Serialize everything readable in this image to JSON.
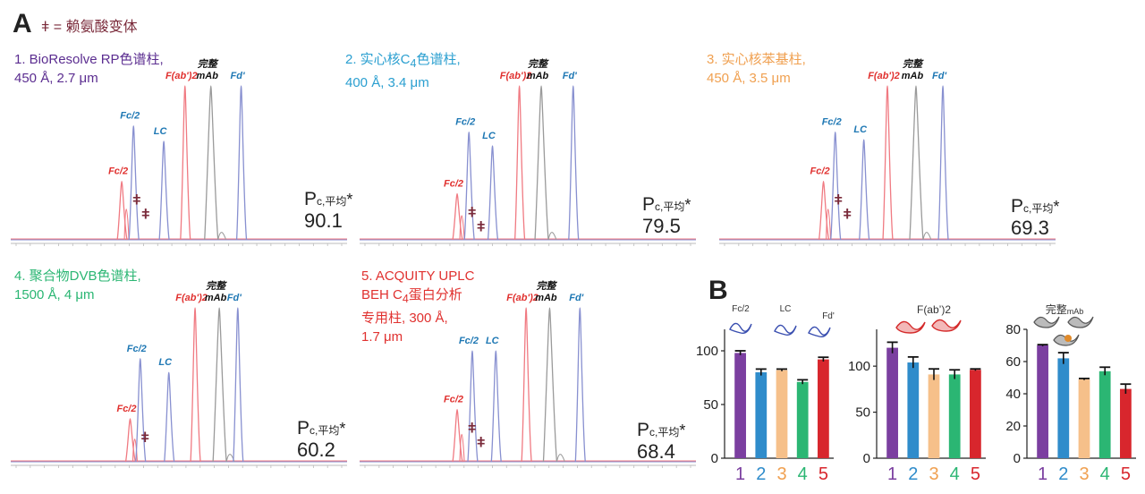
{
  "figure": {
    "panel_a_letter": "A",
    "panel_b_letter": "B",
    "legend_symbol": "ǂ",
    "legend_note": "ǂ = 赖氨酸变体"
  },
  "colors": {
    "blue_trace": "#8890d0",
    "red_trace": "#f07a82",
    "gray_trace": "#9a9a9a",
    "blue_label": "#1f78b4",
    "red_label": "#e0312f",
    "bar1": "#7b3fa0",
    "bar2": "#2f8ccb",
    "bar3": "#f6c08a",
    "bar4": "#2bb673",
    "bar5": "#d8262d"
  },
  "chart_data": [
    {
      "type": "line",
      "id": "chromatogram-1",
      "column_name": "1.  BioResolve RP色谱柱,",
      "column_spec": "450 Å, 2.7 μm",
      "peaks": [
        {
          "label": "Fc/2",
          "color": "red",
          "x": 0.33,
          "height": 0.38
        },
        {
          "label": "Fc/2",
          "color": "blue",
          "x": 0.365,
          "height": 0.74
        },
        {
          "label": "LC",
          "color": "blue",
          "x": 0.455,
          "height": 0.64
        },
        {
          "label": "F(ab')2",
          "color": "red",
          "x": 0.518,
          "height": 1.0
        },
        {
          "label": "完整\nmAb",
          "color": "gray",
          "x": 0.595,
          "height": 1.0
        },
        {
          "label": "Fd'",
          "color": "blue",
          "x": 0.685,
          "height": 1.0
        }
      ],
      "variant_marks": 2,
      "pc_label": "P",
      "pc_sub": "c,平均",
      "pc_star": "*",
      "pc_value": "90.1"
    },
    {
      "type": "line",
      "id": "chromatogram-2",
      "column_name": "2.  实心核C",
      "column_name_sub": "4",
      "column_name_tail": "色谱柱,",
      "column_spec": "400 Å, 3.4 μm",
      "peaks": [
        {
          "label": "Fc/2",
          "color": "red",
          "x": 0.29,
          "height": 0.3
        },
        {
          "label": "Fc/2",
          "color": "blue",
          "x": 0.325,
          "height": 0.7
        },
        {
          "label": "LC",
          "color": "blue",
          "x": 0.395,
          "height": 0.61
        },
        {
          "label": "F(ab')2",
          "color": "red",
          "x": 0.475,
          "height": 1.0
        },
        {
          "label": "完整\nmAb",
          "color": "gray",
          "x": 0.54,
          "height": 1.0
        },
        {
          "label": "Fd'",
          "color": "blue",
          "x": 0.635,
          "height": 1.0
        }
      ],
      "variant_marks": 2,
      "pc_label": "P",
      "pc_sub": "c,平均",
      "pc_star": "*",
      "pc_value": "79.5"
    },
    {
      "type": "line",
      "id": "chromatogram-3",
      "column_name": "3.  实心核苯基柱,",
      "column_spec": "450 Å, 3.5 μm",
      "peaks": [
        {
          "label": "Fc/2",
          "color": "red",
          "x": 0.31,
          "height": 0.38
        },
        {
          "label": "Fc/2",
          "color": "blue",
          "x": 0.345,
          "height": 0.7
        },
        {
          "label": "LC",
          "color": "blue",
          "x": 0.43,
          "height": 0.65
        },
        {
          "label": "F(ab')2",
          "color": "red",
          "x": 0.5,
          "height": 1.0
        },
        {
          "label": "完整\nmAb",
          "color": "gray",
          "x": 0.585,
          "height": 1.0
        },
        {
          "label": "Fd'",
          "color": "blue",
          "x": 0.665,
          "height": 1.0
        }
      ],
      "variant_marks": 2,
      "pc_label": "P",
      "pc_sub": "c,平均",
      "pc_star": "*",
      "pc_value": "69.3"
    },
    {
      "type": "line",
      "id": "chromatogram-4",
      "column_name": "4.  聚合物DVB色谱柱,",
      "column_spec": "1500 Å, 4 μm",
      "peaks": [
        {
          "label": "Fc/2",
          "color": "red",
          "x": 0.355,
          "height": 0.28
        },
        {
          "label": "Fc/2",
          "color": "blue",
          "x": 0.385,
          "height": 0.67
        },
        {
          "label": "LC",
          "color": "blue",
          "x": 0.47,
          "height": 0.58
        },
        {
          "label": "F(ab')2",
          "color": "red",
          "x": 0.548,
          "height": 1.0
        },
        {
          "label": "完整\nmAb",
          "color": "gray",
          "x": 0.62,
          "height": 1.0
        },
        {
          "label": "Fd'",
          "color": "blue",
          "x": 0.675,
          "height": 1.0
        }
      ],
      "variant_marks": 1,
      "pc_label": "P",
      "pc_sub": "c,平均",
      "pc_star": "*",
      "pc_value": "60.2"
    },
    {
      "type": "line",
      "id": "chromatogram-5",
      "column_name": "5.  ACQUITY UPLC",
      "column_name_2": "BEH C",
      "column_name_2_sub": "4",
      "column_name_2_tail": "蛋白分析",
      "column_name_3": "专用柱, 300 Å,",
      "column_spec": "1.7 μm",
      "peaks": [
        {
          "label": "Fc/2",
          "color": "red",
          "x": 0.29,
          "height": 0.34
        },
        {
          "label": "Fc/2",
          "color": "blue",
          "x": 0.335,
          "height": 0.72
        },
        {
          "label": "LC",
          "color": "blue",
          "x": 0.405,
          "height": 0.72
        },
        {
          "label": "F(ab')2",
          "color": "red",
          "x": 0.495,
          "height": 1.0
        },
        {
          "label": "完整\nmAb",
          "color": "gray",
          "x": 0.565,
          "height": 1.0
        },
        {
          "label": "Fd'",
          "color": "blue",
          "x": 0.655,
          "height": 1.0
        }
      ],
      "variant_marks": 2,
      "pc_label": "P",
      "pc_sub": "c,平均",
      "pc_star": "*",
      "pc_value": "68.4"
    },
    {
      "type": "bar",
      "id": "bar-fc-lc-fd",
      "title": "Fc/2 LC Fd'",
      "title_parts": [
        "Fc/2",
        "LC",
        "Fd'"
      ],
      "categories": [
        "1",
        "2",
        "3",
        "4",
        "5"
      ],
      "values": [
        98,
        80,
        82,
        71,
        92
      ],
      "errors": [
        2,
        3,
        1,
        2,
        2
      ],
      "ylim": [
        0,
        120
      ],
      "yticks": [
        0,
        50,
        100
      ],
      "structure_color": "blue"
    },
    {
      "type": "bar",
      "id": "bar-fab2",
      "title": "F(ab’)2",
      "categories": [
        "1",
        "2",
        "3",
        "4",
        "5"
      ],
      "values": [
        120,
        104,
        91,
        91,
        96
      ],
      "errors": [
        6,
        6,
        6,
        5,
        1
      ],
      "ylim": [
        0,
        140
      ],
      "yticks": [
        0,
        50,
        100
      ],
      "structure_color": "red"
    },
    {
      "type": "bar",
      "id": "bar-intact",
      "title": "完整",
      "title_sub": "mAb",
      "categories": [
        "1",
        "2",
        "3",
        "4",
        "5"
      ],
      "values": [
        70,
        62,
        49,
        54,
        43
      ],
      "errors": [
        0.5,
        3.5,
        0.5,
        2.5,
        3
      ],
      "ylim": [
        0,
        80
      ],
      "yticks": [
        0,
        20,
        40,
        60,
        80
      ],
      "structure_color": "gray"
    }
  ]
}
